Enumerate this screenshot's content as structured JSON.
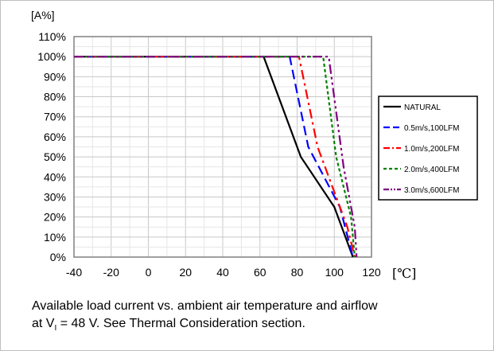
{
  "chart_data": {
    "type": "line",
    "ylabel": "[A%]",
    "xlabel": "[℃]",
    "xlim": [
      -40,
      120
    ],
    "ylim": [
      0,
      110
    ],
    "xticks": [
      "-40",
      "-20",
      "0",
      "20",
      "40",
      "60",
      "80",
      "100",
      "120"
    ],
    "yticks": [
      "0%",
      "10%",
      "20%",
      "30%",
      "40%",
      "50%",
      "60%",
      "70%",
      "80%",
      "90%",
      "100%",
      "110%"
    ],
    "grid": true,
    "legend_position": "right",
    "series": [
      {
        "name": "NATURAL",
        "color": "#000000",
        "dash": "solid",
        "x": [
          -40,
          62,
          82,
          100,
          110
        ],
        "y": [
          100,
          100,
          50,
          25,
          0
        ]
      },
      {
        "name": "0.5m/s,100LFM",
        "color": "#0000ff",
        "dash": "dash",
        "x": [
          -40,
          76,
          86,
          103,
          110
        ],
        "y": [
          100,
          100,
          55,
          25,
          0
        ]
      },
      {
        "name": "1.0m/s,200LFM",
        "color": "#ff0000",
        "dash": "dashdot",
        "x": [
          -40,
          81,
          91,
          107,
          111
        ],
        "y": [
          100,
          100,
          55,
          15,
          0
        ]
      },
      {
        "name": "2.0m/s,400LFM",
        "color": "#008000",
        "dash": "dot",
        "x": [
          -40,
          94,
          101,
          109,
          111
        ],
        "y": [
          100,
          100,
          50,
          20,
          0
        ]
      },
      {
        "name": "3.0m/s,600LFM",
        "color": "#800080",
        "dash": "dashdotdot",
        "x": [
          -40,
          97,
          105,
          111,
          112
        ],
        "y": [
          100,
          100,
          45,
          15,
          0
        ]
      }
    ]
  },
  "caption": {
    "line1": "Available load current vs. ambient air temperature and airflow",
    "line2_prefix": "at V",
    "line2_sub": "I",
    "line2_suffix": " = 48 V. See Thermal Consideration section."
  }
}
